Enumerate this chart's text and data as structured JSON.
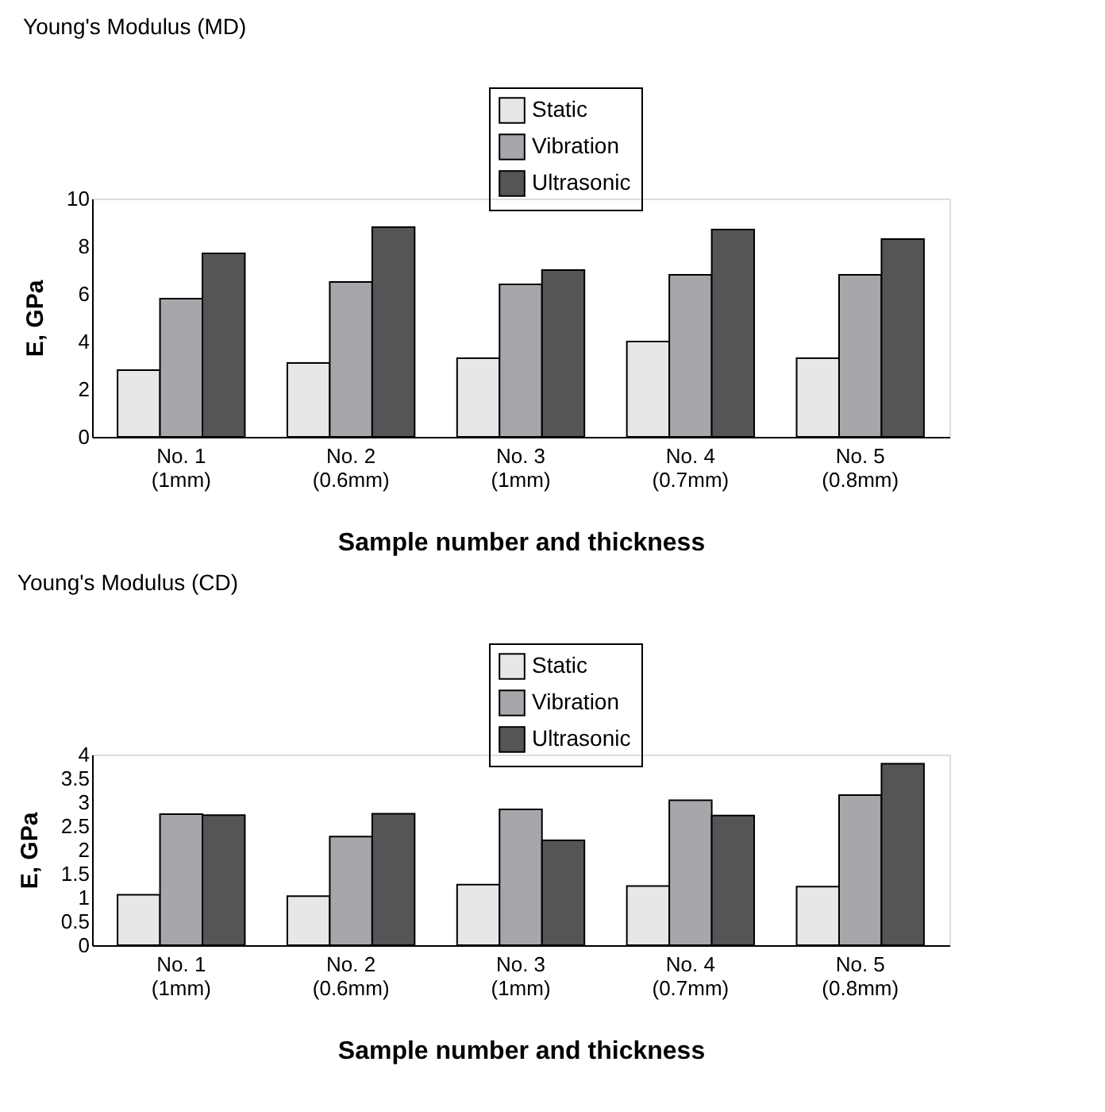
{
  "chart_data": [
    {
      "type": "bar",
      "title": "Young's Modulus (MD)",
      "xlabel": "Sample number and thickness",
      "ylabel": "E, GPa",
      "categories": [
        "No. 1\n(1mm)",
        "No. 2\n(0.6mm)",
        "No. 3\n(1mm)",
        "No. 4\n(0.7mm)",
        "No. 5\n(0.8mm)"
      ],
      "series": [
        {
          "name": "Static",
          "color": "#e6e7e6",
          "values": [
            2.8,
            3.1,
            3.3,
            4.0,
            3.3
          ]
        },
        {
          "name": "Vibration",
          "color": "#a6a7aa",
          "values": [
            5.8,
            6.5,
            6.4,
            6.8,
            6.8
          ]
        },
        {
          "name": "Ultrasonic",
          "color": "#545557",
          "values": [
            7.7,
            8.8,
            7.0,
            8.7,
            8.3
          ]
        }
      ],
      "ylim": [
        0,
        10
      ],
      "yticks": [
        0,
        2,
        4,
        6,
        8,
        10
      ],
      "grid": false,
      "legend": "top"
    },
    {
      "type": "bar",
      "title": "Young's Modulus (CD)",
      "xlabel": "Sample number and thickness",
      "ylabel": "E, GPa",
      "categories": [
        "No. 1\n(1mm)",
        "No. 2\n(0.6mm)",
        "No. 3\n(1mm)",
        "No. 4\n(0.7mm)",
        "No. 5\n(0.8mm)"
      ],
      "series": [
        {
          "name": "Static",
          "color": "#e6e7e6",
          "values": [
            1.06,
            1.03,
            1.27,
            1.24,
            1.23
          ]
        },
        {
          "name": "Vibration",
          "color": "#a6a7aa",
          "values": [
            2.75,
            2.28,
            2.85,
            3.04,
            3.15
          ]
        },
        {
          "name": "Ultrasonic",
          "color": "#545557",
          "values": [
            2.73,
            2.76,
            2.2,
            2.72,
            3.81
          ]
        }
      ],
      "ylim": [
        0,
        4
      ],
      "yticks": [
        0,
        0.5,
        1,
        1.5,
        2,
        2.5,
        3,
        3.5,
        4
      ],
      "grid": false,
      "legend": "top"
    }
  ]
}
